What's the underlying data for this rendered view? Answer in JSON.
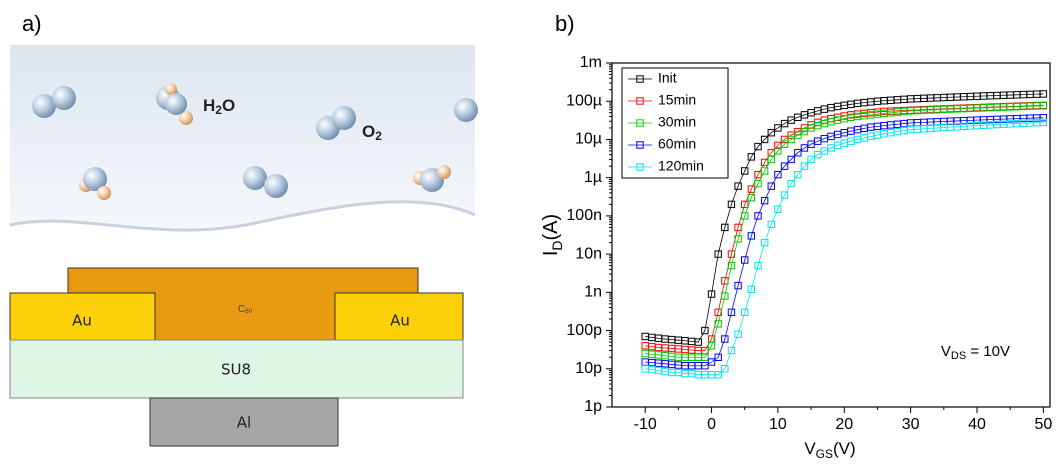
{
  "diagram": {
    "panel_label": "a)",
    "h2o_label": [
      "H",
      "2",
      "O"
    ],
    "o2_label": [
      "O",
      "2"
    ],
    "layers": {
      "c60": [
        "C",
        "60"
      ],
      "au_left": "Au",
      "au_right": "Au",
      "su8": "SU8",
      "al": "Al"
    }
  },
  "chart_data": {
    "type": "scatter",
    "panel_label": "b)",
    "x_label": [
      "V",
      "GS",
      "(V)"
    ],
    "y_label": [
      "I",
      "D",
      "(A)"
    ],
    "annotation": [
      "V",
      "DS",
      " = 10V"
    ],
    "yscale": "log",
    "legend": "top-left",
    "connected": true,
    "xlim": [
      -15,
      51
    ],
    "xticks": [
      -10,
      0,
      10,
      20,
      30,
      40,
      50
    ],
    "ylim": [
      1e-12,
      0.001
    ],
    "yticks": [
      {
        "value": 1e-12,
        "label": "1p"
      },
      {
        "value": 1e-11,
        "label": "10p"
      },
      {
        "value": 1e-10,
        "label": "100p"
      },
      {
        "value": 1e-09,
        "label": "1n"
      },
      {
        "value": 1e-08,
        "label": "10n"
      },
      {
        "value": 1e-07,
        "label": "100n"
      },
      {
        "value": 1e-06,
        "label": "1µ"
      },
      {
        "value": 1e-05,
        "label": "10µ"
      },
      {
        "value": 0.0001,
        "label": "100µ"
      },
      {
        "value": 0.001,
        "label": "1m"
      }
    ],
    "x": [
      -10,
      -9,
      -8,
      -7,
      -6,
      -5,
      -4,
      -3,
      -2,
      -1,
      0,
      1,
      2,
      3,
      4,
      5,
      6,
      7,
      8,
      9,
      10,
      11,
      12,
      13,
      14,
      15,
      16,
      17,
      18,
      19,
      20,
      21,
      22,
      23,
      24,
      25,
      26,
      27,
      28,
      29,
      30,
      31,
      32,
      33,
      34,
      35,
      36,
      37,
      38,
      39,
      40,
      41,
      42,
      43,
      44,
      45,
      46,
      47,
      48,
      49,
      50
    ],
    "series": [
      {
        "name": "Init",
        "color": "#000000",
        "values": [
          7e-11,
          6.6e-11,
          6.3e-11,
          6e-11,
          5.8e-11,
          5.6e-11,
          5.4e-11,
          5.2e-11,
          5e-11,
          1e-10,
          9e-10,
          1e-08,
          5e-08,
          2e-07,
          6e-07,
          1.5e-06,
          3.5e-06,
          6.5e-06,
          1e-05,
          1.5e-05,
          2e-05,
          2.6e-05,
          3.2e-05,
          3.8e-05,
          4.4e-05,
          5e-05,
          5.6e-05,
          6.2e-05,
          6.8e-05,
          7.3e-05,
          7.8e-05,
          8.3e-05,
          8.8e-05,
          9.2e-05,
          9.6e-05,
          0.0001,
          0.000103,
          0.000106,
          0.000109,
          0.000112,
          0.000115,
          0.000117,
          0.000119,
          0.000121,
          0.000123,
          0.000125,
          0.000127,
          0.000129,
          0.000131,
          0.000133,
          0.000135,
          0.000137,
          0.000139,
          0.000141,
          0.000143,
          0.000145,
          0.000147,
          0.000149,
          0.000151,
          0.000153,
          0.000155
        ]
      },
      {
        "name": "15min",
        "color": "#ff0000",
        "values": [
          4e-11,
          3.8e-11,
          3.6e-11,
          3.5e-11,
          3.4e-11,
          3.3e-11,
          3.2e-11,
          3.1e-11,
          3e-11,
          3e-11,
          6e-11,
          3e-10,
          2e-09,
          1e-08,
          5e-08,
          2e-07,
          5e-07,
          1.2e-06,
          2.5e-06,
          4.5e-06,
          7e-06,
          1e-05,
          1.3e-05,
          1.6e-05,
          2e-05,
          2.4e-05,
          2.8e-05,
          3.2e-05,
          3.5e-05,
          3.8e-05,
          4.1e-05,
          4.4e-05,
          4.6e-05,
          4.8e-05,
          5e-05,
          5.2e-05,
          5.4e-05,
          5.5e-05,
          5.6e-05,
          5.7e-05,
          5.8e-05,
          5.9e-05,
          6e-05,
          6.1e-05,
          6.2e-05,
          6.3e-05,
          6.4e-05,
          6.5e-05,
          6.6e-05,
          6.7e-05,
          6.8e-05,
          6.9e-05,
          7e-05,
          7.1e-05,
          7.2e-05,
          7.3e-05,
          7.4e-05,
          7.5e-05,
          7.6e-05,
          7.7e-05,
          7.8e-05
        ]
      },
      {
        "name": "30min",
        "color": "#00cc00",
        "values": [
          2.5e-11,
          2.4e-11,
          2.3e-11,
          2.2e-11,
          2.1e-11,
          2e-11,
          2e-11,
          2e-11,
          2e-11,
          2e-11,
          4e-11,
          1.5e-10,
          8e-10,
          5e-09,
          2.5e-08,
          1e-07,
          3e-07,
          7e-07,
          1.5e-06,
          3e-06,
          5e-06,
          7.5e-06,
          1e-05,
          1.3e-05,
          1.6e-05,
          2e-05,
          2.3e-05,
          2.6e-05,
          2.9e-05,
          3.2e-05,
          3.5e-05,
          3.8e-05,
          4e-05,
          4.2e-05,
          4.4e-05,
          4.6e-05,
          4.8e-05,
          5e-05,
          5.2e-05,
          5.4e-05,
          5.6e-05,
          5.7e-05,
          5.8e-05,
          5.9e-05,
          6e-05,
          6.1e-05,
          6.2e-05,
          6.3e-05,
          6.4e-05,
          6.5e-05,
          6.6e-05,
          6.7e-05,
          6.8e-05,
          6.9e-05,
          7e-05,
          7.1e-05,
          7.2e-05,
          7.3e-05,
          7.4e-05,
          7.5e-05,
          7.6e-05
        ]
      },
      {
        "name": "60min",
        "color": "#0000ff",
        "values": [
          1.5e-11,
          1.45e-11,
          1.4e-11,
          1.35e-11,
          1.3e-11,
          1.25e-11,
          1.2e-11,
          1.2e-11,
          1.2e-11,
          1.2e-11,
          1.5e-11,
          2e-11,
          6e-11,
          3e-10,
          1.5e-09,
          7e-09,
          3e-08,
          1e-07,
          2.5e-07,
          6e-07,
          1.2e-06,
          2e-06,
          3e-06,
          4.5e-06,
          6e-06,
          7.5e-06,
          9e-06,
          1.05e-05,
          1.2e-05,
          1.35e-05,
          1.5e-05,
          1.65e-05,
          1.8e-05,
          1.95e-05,
          2.1e-05,
          2.2e-05,
          2.3e-05,
          2.4e-05,
          2.5e-05,
          2.6e-05,
          2.7e-05,
          2.75e-05,
          2.8e-05,
          2.85e-05,
          2.9e-05,
          2.95e-05,
          3e-05,
          3.05e-05,
          3.1e-05,
          3.15e-05,
          3.2e-05,
          3.25e-05,
          3.3e-05,
          3.35e-05,
          3.4e-05,
          3.45e-05,
          3.5e-05,
          3.55e-05,
          3.6e-05,
          3.65e-05,
          3.7e-05
        ]
      },
      {
        "name": "120min",
        "color": "#00e5ee",
        "values": [
          1e-11,
          9.5e-12,
          9e-12,
          8.5e-12,
          8e-12,
          8e-12,
          7.5e-12,
          7.5e-12,
          7e-12,
          7e-12,
          7e-12,
          7e-12,
          1e-11,
          3e-11,
          8e-11,
          3e-10,
          1.2e-09,
          5e-09,
          2e-08,
          6e-08,
          1.5e-07,
          3.5e-07,
          7e-07,
          1.2e-06,
          2e-06,
          3e-06,
          4e-06,
          5e-06,
          6e-06,
          7e-06,
          8e-06,
          9e-06,
          1e-05,
          1.1e-05,
          1.2e-05,
          1.3e-05,
          1.4e-05,
          1.5e-05,
          1.6e-05,
          1.7e-05,
          1.8e-05,
          1.85e-05,
          1.9e-05,
          1.95e-05,
          2e-05,
          2.05e-05,
          2.1e-05,
          2.15e-05,
          2.2e-05,
          2.25e-05,
          2.3e-05,
          2.35e-05,
          2.4e-05,
          2.45e-05,
          2.5e-05,
          2.55e-05,
          2.6e-05,
          2.65e-05,
          2.7e-05,
          2.75e-05,
          2.8e-05
        ]
      }
    ]
  }
}
